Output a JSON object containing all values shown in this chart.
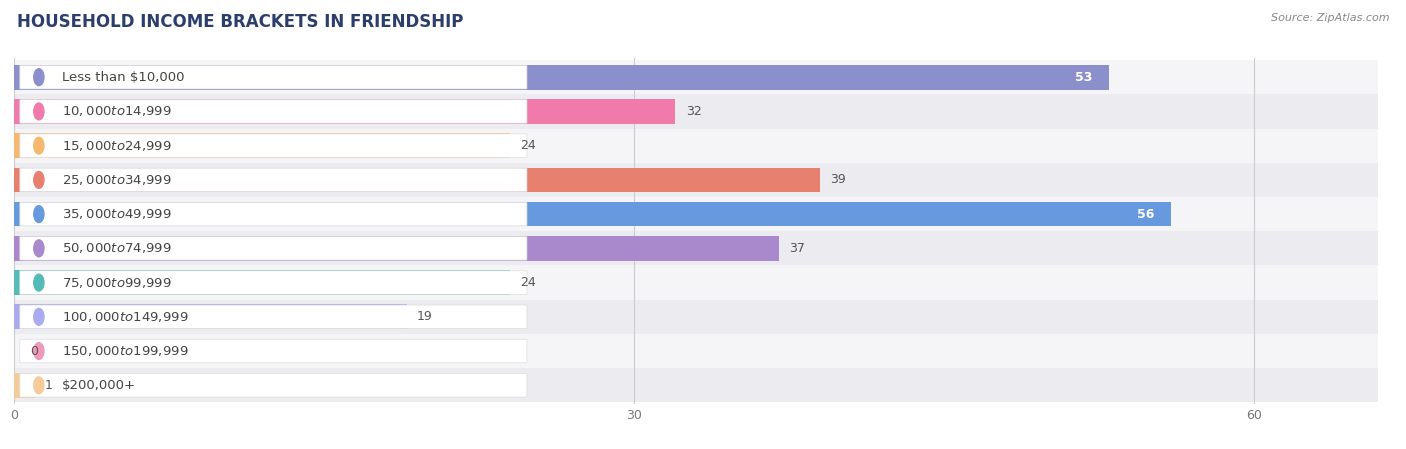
{
  "title": "HOUSEHOLD INCOME BRACKETS IN FRIENDSHIP",
  "source": "Source: ZipAtlas.com",
  "categories": [
    "Less than $10,000",
    "$10,000 to $14,999",
    "$15,000 to $24,999",
    "$25,000 to $34,999",
    "$35,000 to $49,999",
    "$50,000 to $74,999",
    "$75,000 to $99,999",
    "$100,000 to $149,999",
    "$150,000 to $199,999",
    "$200,000+"
  ],
  "values": [
    53,
    32,
    24,
    39,
    56,
    37,
    24,
    19,
    0,
    1
  ],
  "bar_colors": [
    "#8b8fcc",
    "#f07baa",
    "#f5b86e",
    "#e88070",
    "#6699dd",
    "#aa88cc",
    "#55bbb8",
    "#aaaaee",
    "#f099bb",
    "#f5cc99"
  ],
  "xlim": [
    0,
    60
  ],
  "xticks": [
    0,
    30,
    60
  ],
  "background_color": "#ffffff",
  "row_bg_colors": [
    "#f5f5f8",
    "#ebebf0"
  ],
  "title_fontsize": 12,
  "label_fontsize": 9.5,
  "value_fontsize": 9
}
